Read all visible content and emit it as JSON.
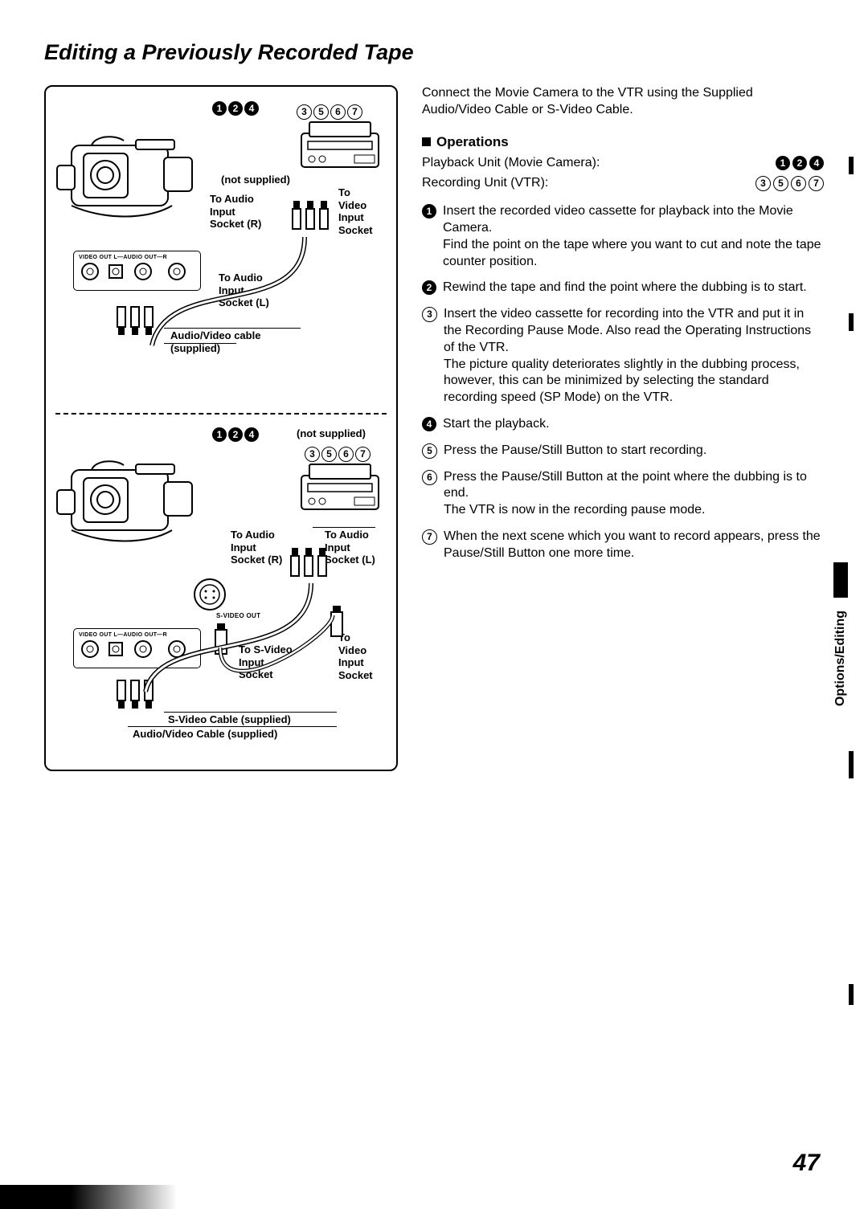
{
  "title": "Editing a Previously Recorded Tape",
  "page_number": "47",
  "side_tab": "Options/Editing",
  "diagram_top": {
    "playback_markers": [
      "1",
      "2",
      "4"
    ],
    "record_markers": [
      "3",
      "5",
      "6",
      "7"
    ],
    "not_supplied": "(not supplied)",
    "to_audio_r": "To Audio Input Socket (R)",
    "to_video": "To Video Input Socket",
    "ports_label": "VIDEO OUT    L—AUDIO OUT—R",
    "to_audio_l": "To Audio Input Socket (L)",
    "cable": "Audio/Video cable (supplied)"
  },
  "diagram_bottom": {
    "playback_markers": [
      "1",
      "2",
      "4"
    ],
    "not_supplied": "(not supplied)",
    "record_markers": [
      "3",
      "5",
      "6",
      "7"
    ],
    "to_audio_r": "To Audio Input Socket (R)",
    "to_audio_l": "To Audio Input Socket (L)",
    "svideo_label": "S-VIDEO OUT",
    "ports_label": "VIDEO OUT    L—AUDIO OUT—R",
    "to_svideo": "To S-Video Input Socket",
    "to_video": "To Video Input Socket",
    "svideo_cable": "S-Video Cable (supplied)",
    "av_cable": "Audio/Video Cable (supplied)"
  },
  "intro": "Connect the Movie Camera to the VTR using the Supplied Audio/Video Cable or S-Video Cable.",
  "operations_heading": "Operations",
  "playback_unit_label": "Playback Unit (Movie Camera):",
  "playback_unit_markers": [
    "1",
    "2",
    "4"
  ],
  "recording_unit_label": "Recording Unit (VTR):",
  "recording_unit_markers": [
    "3",
    "5",
    "6",
    "7"
  ],
  "steps": [
    {
      "n": "1",
      "style": "black",
      "text": "Insert the recorded video cassette for playback into the Movie Camera.",
      "extra": "Find the point on the tape where you want to cut and note the tape counter position."
    },
    {
      "n": "2",
      "style": "black",
      "text": "Rewind the tape and find the point where the dubbing is to start."
    },
    {
      "n": "3",
      "style": "open",
      "text": "Insert the video cassette for recording into the VTR and put it in the Recording Pause Mode. Also read the Operating Instructions of the VTR.",
      "extra": "The picture quality deteriorates slightly in the dubbing process, however, this can be minimized by selecting the standard recording speed (SP Mode) on the VTR."
    },
    {
      "n": "4",
      "style": "black",
      "text": "Start the playback."
    },
    {
      "n": "5",
      "style": "open",
      "text": "Press the Pause/Still Button to start recording."
    },
    {
      "n": "6",
      "style": "open",
      "text": "Press the Pause/Still Button at the point where the dubbing is to end.",
      "extra": "The VTR is now in the recording pause mode."
    },
    {
      "n": "7",
      "style": "open",
      "text": "When the next scene which you want to record appears, press the Pause/Still Button one more time."
    }
  ]
}
